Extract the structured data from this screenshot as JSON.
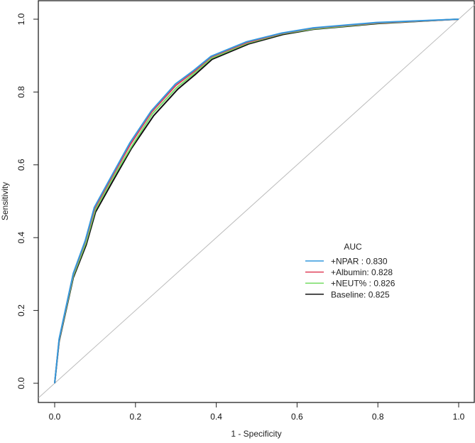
{
  "chart_data": {
    "type": "line",
    "title": "",
    "xlabel": "1 - Specificity",
    "ylabel": "Sensitivity",
    "xlim": [
      0,
      1
    ],
    "ylim": [
      0,
      1
    ],
    "xticks": [
      "0.0",
      "0.2",
      "0.4",
      "0.6",
      "0.8",
      "1.0"
    ],
    "yticks": [
      "0.0",
      "0.2",
      "0.4",
      "0.6",
      "0.8",
      "1.0"
    ],
    "grid": false,
    "reference_line": {
      "from": [
        0,
        0
      ],
      "to": [
        1,
        1
      ],
      "color": "#bbbbbb"
    },
    "legend": {
      "title": "AUC",
      "position": "lower-right",
      "entries": [
        {
          "label": "+NPAR   : 0.830",
          "color": "#3399dd"
        },
        {
          "label": "+Albumin: 0.828",
          "color": "#e0405a"
        },
        {
          "label": "+NEUT%  : 0.826",
          "color": "#77dd66"
        },
        {
          "label": "Baseline: 0.825",
          "color": "#111111"
        }
      ]
    },
    "series": [
      {
        "name": "Baseline",
        "auc": 0.825,
        "color": "#111111",
        "x": [
          0,
          0.011,
          0.046,
          0.078,
          0.101,
          0.144,
          0.19,
          0.245,
          0.305,
          0.35,
          0.39,
          0.48,
          0.565,
          0.64,
          0.8,
          1.0
        ],
        "y": [
          0,
          0.115,
          0.29,
          0.38,
          0.47,
          0.555,
          0.645,
          0.735,
          0.808,
          0.85,
          0.89,
          0.932,
          0.958,
          0.972,
          0.988,
          1.0
        ]
      },
      {
        "name": "+NEUT%",
        "auc": 0.826,
        "color": "#77dd66",
        "x": [
          0,
          0.011,
          0.046,
          0.077,
          0.1,
          0.142,
          0.189,
          0.242,
          0.302,
          0.347,
          0.388,
          0.477,
          0.563,
          0.639,
          0.797,
          1.0
        ],
        "y": [
          0,
          0.118,
          0.295,
          0.385,
          0.475,
          0.56,
          0.648,
          0.74,
          0.812,
          0.853,
          0.893,
          0.934,
          0.96,
          0.973,
          0.989,
          1.0
        ]
      },
      {
        "name": "+Albumin",
        "auc": 0.828,
        "color": "#e0405a",
        "x": [
          0,
          0.011,
          0.046,
          0.076,
          0.099,
          0.141,
          0.187,
          0.24,
          0.3,
          0.346,
          0.387,
          0.476,
          0.562,
          0.638,
          0.796,
          1.0
        ],
        "y": [
          0,
          0.12,
          0.3,
          0.39,
          0.48,
          0.565,
          0.655,
          0.745,
          0.818,
          0.857,
          0.896,
          0.936,
          0.961,
          0.975,
          0.99,
          1.0
        ]
      },
      {
        "name": "+NPAR",
        "auc": 0.83,
        "color": "#3399dd",
        "x": [
          0,
          0.011,
          0.046,
          0.076,
          0.098,
          0.14,
          0.186,
          0.239,
          0.299,
          0.345,
          0.387,
          0.475,
          0.562,
          0.638,
          0.796,
          1.0
        ],
        "y": [
          0,
          0.122,
          0.302,
          0.393,
          0.483,
          0.568,
          0.66,
          0.748,
          0.822,
          0.86,
          0.898,
          0.938,
          0.962,
          0.976,
          0.991,
          1.0
        ]
      }
    ]
  }
}
